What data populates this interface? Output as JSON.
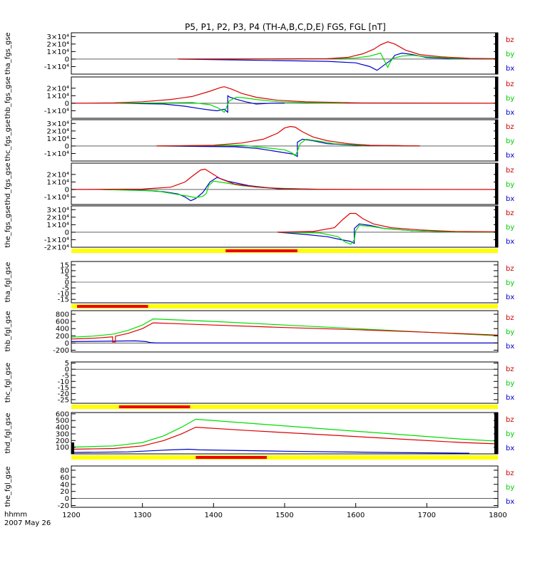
{
  "chart_data": {
    "type": "line",
    "title": "P5, P1, P2, P3, P4 (TH-A,B,C,D,E) FGS, FGL [nT]",
    "x_axis": {
      "range": [
        1200,
        1800
      ],
      "ticks": [
        1200,
        1300,
        1400,
        1500,
        1600,
        1700,
        1800
      ],
      "tick_labels": [
        "1200",
        "1300",
        "1400",
        "1500",
        "1600",
        "1700",
        "1800"
      ],
      "label_line1": "hhmm",
      "label_line2": "2007 May 26"
    },
    "legend": [
      {
        "name": "bz",
        "color": "#cc0000"
      },
      {
        "name": "by",
        "color": "#00cc00"
      },
      {
        "name": "bx",
        "color": "#0000cc"
      }
    ],
    "colors": {
      "bz": "#dd0000",
      "by": "#00dd00",
      "bx": "#0000cc",
      "bar_yellow": "#ffff00",
      "bar_red": "#ee0000"
    },
    "panels": [
      {
        "ylabel": "tha_fgs_gse",
        "ylim": [
          -20000,
          35000
        ],
        "ticks": [
          -10000,
          0,
          10000,
          20000,
          30000
        ],
        "tick_labels": [
          "-1×10⁴",
          "0",
          "1×10⁴",
          "2×10⁴",
          "3×10⁴"
        ],
        "series": {
          "bz": {
            "x": [
              1350,
              1560,
              1590,
              1610,
              1625,
              1635,
              1645,
              1655,
              1670,
              1690,
              1720,
              1760,
              1800
            ],
            "y": [
              0,
              500,
              2500,
              7000,
              13000,
              19000,
              23000,
              20000,
              12000,
              6000,
              3000,
              1000,
              500
            ]
          },
          "by": {
            "x": [
              1350,
              1560,
              1600,
              1620,
              1635,
              1645,
              1648,
              1652,
              1665,
              1680,
              1700,
              1740,
              1800
            ],
            "y": [
              0,
              500,
              1500,
              4000,
              8000,
              -11000,
              -5000,
              1000,
              4000,
              5000,
              3000,
              1000,
              0
            ]
          },
          "bx": {
            "x": [
              1350,
              1560,
              1600,
              1620,
              1630,
              1640,
              1650,
              1655,
              1665,
              1680,
              1700,
              1740,
              1800
            ],
            "y": [
              0,
              -3000,
              -5000,
              -10000,
              -15000,
              -8000,
              -1000,
              5000,
              8000,
              6000,
              2000,
              500,
              0
            ]
          }
        },
        "bar": null
      },
      {
        "ylabel": "thb_fgs_gse",
        "ylim": [
          -20000,
          35000
        ],
        "ticks": [
          -10000,
          0,
          10000,
          20000
        ],
        "tick_labels": [
          "-1×10⁴",
          "0",
          "1×10⁴",
          "2×10⁴"
        ],
        "series": {
          "bz": {
            "x": [
              1200,
              1260,
              1300,
              1340,
              1370,
              1395,
              1410,
              1415,
              1425,
              1440,
              1460,
              1490,
              1530,
              1600,
              1800
            ],
            "y": [
              0,
              500,
              2000,
              5000,
              9000,
              16000,
              21000,
              22000,
              19000,
              13000,
              8000,
              4000,
              2000,
              500,
              0
            ]
          },
          "by": {
            "x": [
              1265,
              1330,
              1370,
              1395,
              1408,
              1415,
              1418,
              1422,
              1432,
              1445,
              1460,
              1490,
              1530,
              1585
            ],
            "y": [
              0,
              500,
              1000,
              -2000,
              -7000,
              -12000,
              -6000,
              3000,
              8000,
              7000,
              5000,
              2000,
              1000,
              0
            ]
          },
          "bx": {
            "x": [
              1265,
              1330,
              1360,
              1380,
              1395,
              1405,
              1415,
              1420,
              1420,
              1423,
              1433,
              1445,
              1460,
              1480,
              1500
            ],
            "y": [
              0,
              -1000,
              -4000,
              -7000,
              -9000,
              -10000,
              -8000,
              -12000,
              10000,
              8000,
              5000,
              2000,
              -1000,
              0,
              0
            ]
          }
        },
        "bar": null
      },
      {
        "ylabel": "thc_fgs_gse",
        "ylim": [
          -20000,
          35000
        ],
        "ticks": [
          -10000,
          0,
          10000,
          20000,
          30000
        ],
        "tick_labels": [
          "-1×10⁴",
          "0",
          "1×10⁴",
          "2×10⁴",
          "3×10⁴"
        ],
        "series": {
          "bz": {
            "x": [
              1320,
              1400,
              1440,
              1470,
              1490,
              1500,
              1508,
              1515,
              1525,
              1540,
              1560,
              1590,
              1620,
              1690
            ],
            "y": [
              0,
              1000,
              4000,
              9000,
              17000,
              24000,
              26000,
              25000,
              19000,
              12000,
              7000,
              3000,
              1000,
              0
            ]
          },
          "by": {
            "x": [
              1320,
              1440,
              1480,
              1500,
              1510,
              1515,
              1518,
              1522,
              1530,
              1545,
              1570,
              1610,
              1690
            ],
            "y": [
              0,
              1000,
              -3000,
              -5000,
              -9000,
              -13000,
              -7000,
              3000,
              9000,
              7000,
              3000,
              1000,
              0
            ]
          },
          "bx": {
            "x": [
              1320,
              1430,
              1460,
              1480,
              1500,
              1513,
              1518,
              1518,
              1525,
              1540,
              1560,
              1600,
              1690
            ],
            "y": [
              0,
              -1000,
              -3000,
              -6000,
              -9000,
              -11000,
              -14000,
              5000,
              9000,
              7000,
              3000,
              1000,
              0
            ]
          }
        },
        "bar": null
      },
      {
        "ylabel": "thd_fgs_gse",
        "ylim": [
          -20000,
          35000
        ],
        "ticks": [
          -10000,
          0,
          10000,
          20000
        ],
        "tick_labels": [
          "-1×10⁴",
          "0",
          "1×10⁴",
          "2×10⁴"
        ],
        "series": {
          "bz": {
            "x": [
              1200,
              1300,
              1340,
              1360,
              1372,
              1382,
              1388,
              1395,
              1410,
              1430,
              1460,
              1500,
              1550,
              1800
            ],
            "y": [
              0,
              500,
              3000,
              10000,
              19000,
              26000,
              27000,
              23000,
              14000,
              7000,
              3000,
              1000,
              300,
              0
            ]
          },
          "by": {
            "x": [
              1240,
              1320,
              1345,
              1365,
              1375,
              1385,
              1390,
              1393,
              1400,
              1415,
              1440,
              1480,
              1550
            ],
            "y": [
              0,
              -2000,
              -6000,
              -9000,
              -11000,
              -9000,
              -5000,
              5000,
              11000,
              9000,
              5000,
              2000,
              0
            ]
          },
          "bx": {
            "x": [
              1240,
              1300,
              1330,
              1350,
              1360,
              1368,
              1375,
              1385,
              1395,
              1405,
              1420,
              1450,
              1490,
              1550
            ],
            "y": [
              0,
              -1000,
              -3000,
              -6000,
              -10000,
              -15000,
              -12000,
              -4000,
              10000,
              16000,
              11000,
              5000,
              1000,
              0
            ]
          }
        },
        "bar": null
      },
      {
        "ylabel": "the_fgs_gse",
        "ylim": [
          -20000,
          35000
        ],
        "ticks": [
          -20000,
          -10000,
          0,
          10000,
          20000,
          30000
        ],
        "tick_labels": [
          "-2×10⁴",
          "-1×10⁴",
          "0",
          "1×10⁴",
          "2×10⁴",
          "3×10⁴"
        ],
        "series": {
          "bz": {
            "x": [
              1490,
              1540,
              1570,
              1582,
              1592,
              1600,
              1610,
              1625,
              1650,
              1690,
              1740,
              1800
            ],
            "y": [
              0,
              1000,
              6000,
              17000,
              25000,
              25000,
              18000,
              11000,
              6000,
              3000,
              1000,
              500
            ]
          },
          "by": {
            "x": [
              1490,
              1550,
              1575,
              1585,
              1593,
              1598,
              1600,
              1605,
              1620,
              1640,
              1680,
              1740,
              1800
            ],
            "y": [
              0,
              -1000,
              -6000,
              -13000,
              -16000,
              -10000,
              2000,
              9000,
              8000,
              5000,
              2000,
              500,
              0
            ]
          },
          "bx": {
            "x": [
              1490,
              1530,
              1560,
              1580,
              1592,
              1598,
              1598,
              1605,
              1620,
              1640,
              1680,
              1740,
              1800
            ],
            "y": [
              0,
              -3000,
              -6000,
              -10000,
              -12000,
              -15000,
              5000,
              11000,
              9000,
              5000,
              2000,
              500,
              0
            ]
          }
        },
        "bar": {
          "segments": [
            [
              1417,
              1518
            ]
          ]
        }
      },
      {
        "ylabel": "tha_fgl_gse",
        "ylim": [
          -18,
          18
        ],
        "ticks": [
          -15,
          -10,
          -5,
          0,
          5,
          10,
          15
        ],
        "tick_labels": [
          "-15",
          "-10",
          "-5",
          "0",
          "5",
          "10",
          "15"
        ],
        "series": {},
        "bar": {
          "segments": [
            [
              1208,
              1308
            ]
          ]
        }
      },
      {
        "ylabel": "thb_fgl_gse",
        "ylim": [
          -250,
          900
        ],
        "ticks": [
          -200,
          0,
          200,
          400,
          600,
          800
        ],
        "tick_labels": [
          "-200",
          "0",
          "200",
          "400",
          "600",
          "800"
        ],
        "series": {
          "bz": {
            "x": [
              1200,
              1230,
              1258,
              1258,
              1260,
              1262,
              1262,
              1280,
              1300,
              1315,
              1400,
              1500,
              1600,
              1700,
              1800
            ],
            "y": [
              110,
              130,
              170,
              30,
              30,
              30,
              190,
              270,
              400,
              560,
              500,
              430,
              370,
              300,
              220
            ]
          },
          "by": {
            "x": [
              1200,
              1230,
              1260,
              1280,
              1300,
              1315,
              1400,
              1500,
              1600,
              1700,
              1800
            ],
            "y": [
              160,
              190,
              250,
              350,
              500,
              670,
              600,
              500,
              400,
              300,
              200
            ]
          },
          "bx": {
            "x": [
              1200,
              1250,
              1290,
              1305,
              1312,
              1320,
              1800
            ],
            "y": [
              40,
              50,
              60,
              40,
              10,
              0,
              0
            ]
          }
        },
        "bar": null
      },
      {
        "ylabel": "thc_fgl_gse",
        "ylim": [
          -28,
          6
        ],
        "ticks": [
          -25,
          -20,
          -15,
          -10,
          -5,
          0,
          5
        ],
        "tick_labels": [
          "-25",
          "-20",
          "-15",
          "-10",
          "-5",
          "0",
          "5"
        ],
        "series": {},
        "bar": {
          "segments": [
            [
              1267,
              1367
            ]
          ]
        }
      },
      {
        "ylabel": "thd_fgl_gse",
        "ylim": [
          0,
          620
        ],
        "ticks": [
          100,
          200,
          300,
          400,
          500,
          600
        ],
        "tick_labels": [
          "100",
          "200",
          "300",
          "400",
          "500",
          "600"
        ],
        "series": {
          "bz": {
            "x": [
              1200,
              1260,
              1300,
              1330,
              1355,
              1375,
              1450,
              1550,
              1650,
              1750,
              1800
            ],
            "y": [
              70,
              80,
              120,
              200,
              300,
              400,
              350,
              290,
              230,
              170,
              150
            ]
          },
          "by": {
            "x": [
              1200,
              1260,
              1300,
              1330,
              1355,
              1375,
              1450,
              1550,
              1650,
              1750,
              1800
            ],
            "y": [
              100,
              120,
              170,
              270,
              400,
              520,
              460,
              380,
              300,
              220,
              190
            ]
          },
          "bx": {
            "x": [
              1200,
              1280,
              1320,
              1340,
              1365,
              1380,
              1500,
              1650,
              1760
            ],
            "y": [
              20,
              30,
              50,
              60,
              70,
              60,
              40,
              20,
              10
            ]
          }
        },
        "bar": {
          "segments": [
            [
              1375,
              1475
            ]
          ]
        }
      },
      {
        "ylabel": "the_fgl_gse",
        "ylim": [
          -25,
          92
        ],
        "ticks": [
          -20,
          0,
          20,
          40,
          60,
          80
        ],
        "tick_labels": [
          "-20",
          "0",
          "20",
          "40",
          "60",
          "80"
        ],
        "series": {},
        "bar": null
      }
    ]
  }
}
